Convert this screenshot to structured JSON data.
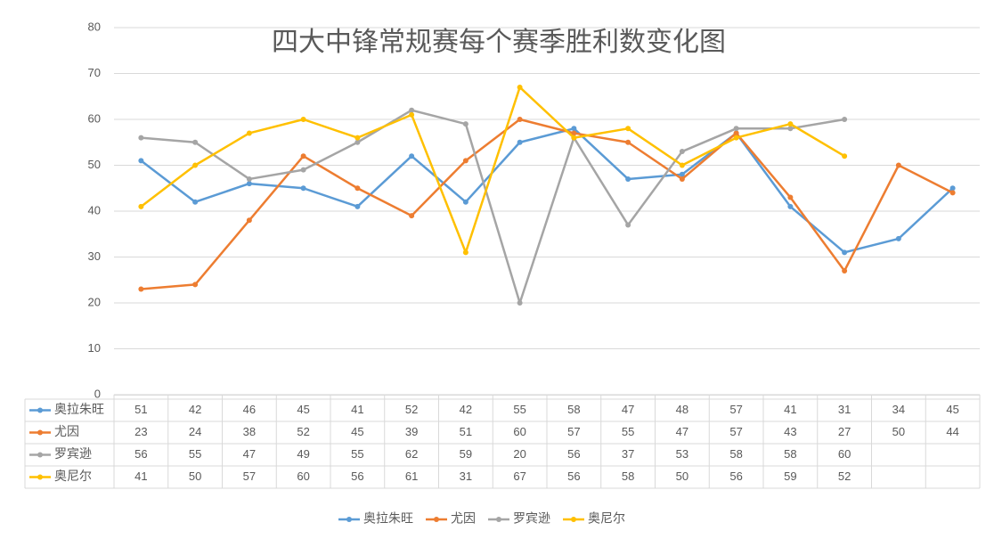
{
  "chart_data": {
    "type": "line",
    "title": "四大中锋常规赛每个赛季胜利数变化图",
    "categories": [
      null,
      null,
      null,
      null,
      null,
      null,
      null,
      null,
      null,
      null,
      null,
      null,
      null,
      null,
      null,
      null
    ],
    "series": [
      {
        "name": "奥拉朱旺",
        "color": "#5b9bd5",
        "values": [
          51,
          42,
          46,
          45,
          41,
          52,
          42,
          55,
          58,
          47,
          48,
          57,
          41,
          31,
          34,
          45
        ]
      },
      {
        "name": "尤因",
        "color": "#ed7d31",
        "values": [
          23,
          24,
          38,
          52,
          45,
          39,
          51,
          60,
          57,
          55,
          47,
          57,
          43,
          27,
          50,
          44
        ]
      },
      {
        "name": "罗宾逊",
        "color": "#a5a5a5",
        "values": [
          56,
          55,
          47,
          49,
          55,
          62,
          59,
          20,
          56,
          37,
          53,
          58,
          58,
          60,
          null,
          null
        ]
      },
      {
        "name": "奥尼尔",
        "color": "#ffc000",
        "values": [
          41,
          50,
          57,
          60,
          56,
          61,
          31,
          67,
          56,
          58,
          50,
          56,
          59,
          52,
          null,
          null
        ]
      }
    ],
    "ylim": [
      0,
      80
    ],
    "yticks": [
      0,
      10,
      20,
      30,
      40,
      50,
      60,
      70,
      80
    ],
    "grid": true,
    "data_table": true,
    "legend": "bottom"
  }
}
